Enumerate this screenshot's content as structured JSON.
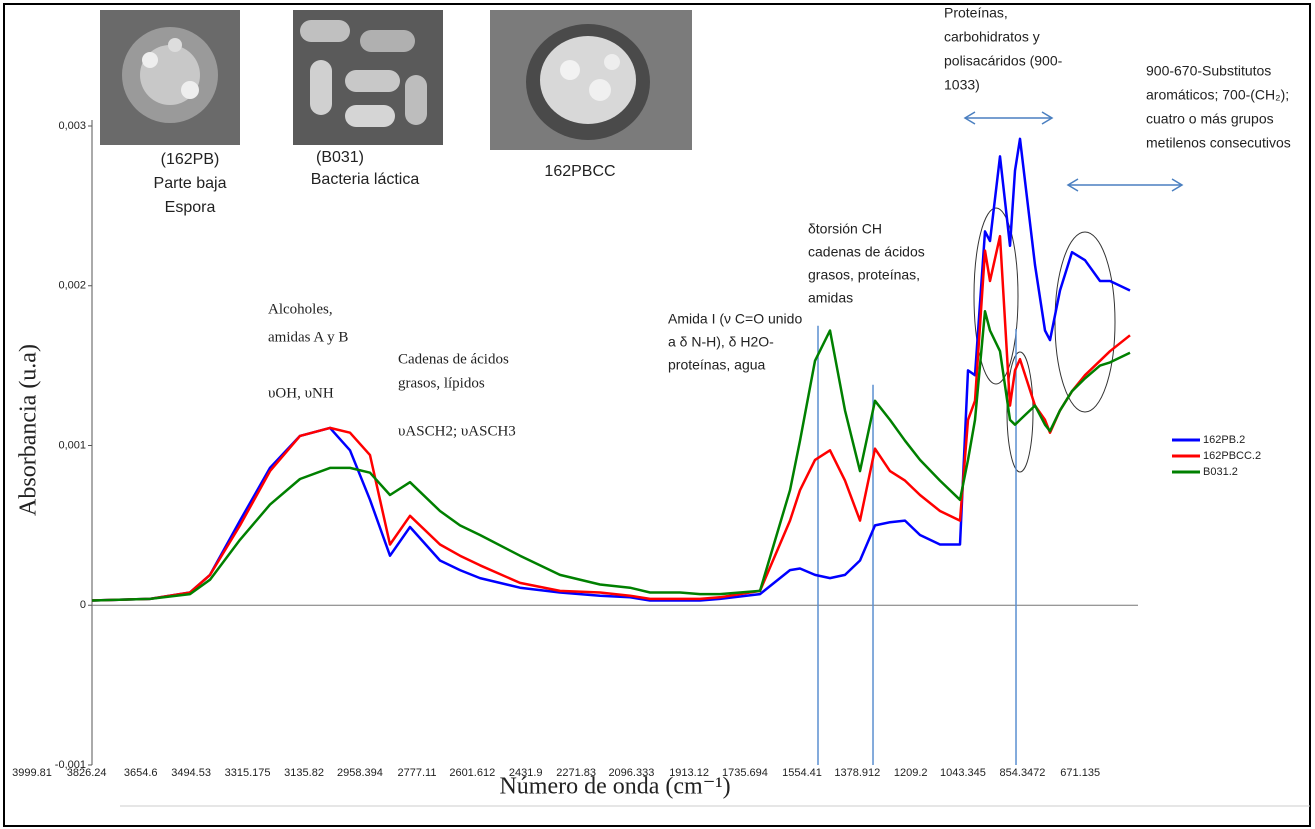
{
  "chart_data": {
    "type": "line",
    "x_label": "Número de onda (cm⁻¹)",
    "y_label": "Absorbancia (u.a)",
    "xlim": [
      3904.5,
      582.8
    ],
    "ylim": [
      -0.001,
      0.003
    ],
    "xticks": [
      3999.81,
      3826.24,
      3654.6,
      3494.53,
      3315.175,
      3135.82,
      2958.394,
      2777.11,
      2601.612,
      2431.9,
      2271.83,
      2096.333,
      1913.12,
      1735.694,
      1554.41,
      1378.912,
      1209.2,
      1043.345,
      854.3472,
      671.135
    ],
    "yticks": [
      {
        "value": 0.003,
        "label": "0,003"
      },
      {
        "value": 0.002,
        "label": "0,002"
      },
      {
        "value": 0.001,
        "label": "0,001"
      },
      0,
      {
        "value": -0.001,
        "label": "-0,001"
      }
    ],
    "legend": "right",
    "x": [
      3904.5,
      3720.3,
      3593.3,
      3529.8,
      3434.5,
      3339.3,
      3244.0,
      3148.7,
      3085.2,
      3021.7,
      2958.2,
      2894.7,
      2799.4,
      2735.9,
      2672.4,
      2545.3,
      2418.3,
      2291.3,
      2196.0,
      2132.5,
      2037.2,
      1973.7,
      1910.2,
      1783.2,
      1687.9,
      1656.1,
      1608.5,
      1560.9,
      1513.2,
      1465.6,
      1418.0,
      1370.3,
      1322.7,
      1275.0,
      1211.5,
      1148.0,
      1122.6,
      1100.4,
      1068.6,
      1052.8,
      1021.0,
      989.2,
      973.4,
      957.5,
      909.8,
      878.1,
      862.2,
      830.4,
      792.3,
      751.1,
      703.4,
      671.7,
      608.2
    ],
    "series": [
      {
        "name": "162PB.2",
        "color": "#0000ff",
        "values": [
          3e-05,
          4e-05,
          8e-05,
          0.00019,
          0.00053,
          0.00086,
          0.00106,
          0.00111,
          0.00097,
          0.00066,
          0.00031,
          0.00049,
          0.00028,
          0.00022,
          0.00017,
          0.00011,
          8e-05,
          6e-05,
          5e-05,
          3e-05,
          3e-05,
          3e-05,
          4e-05,
          7e-05,
          0.00022,
          0.00023,
          0.00019,
          0.00017,
          0.00019,
          0.00028,
          0.0005,
          0.00052,
          0.00053,
          0.00044,
          0.00038,
          0.00038,
          0.00147,
          0.00144,
          0.00234,
          0.00228,
          0.00281,
          0.00225,
          0.00272,
          0.00292,
          0.00213,
          0.00172,
          0.00166,
          0.00197,
          0.00221,
          0.00216,
          0.00203,
          0.00203,
          0.00197
        ]
      },
      {
        "name": "162PBCC.2",
        "color": "#ff0000",
        "values": [
          3e-05,
          4e-05,
          8e-05,
          0.00019,
          0.0005,
          0.00084,
          0.00106,
          0.00111,
          0.00108,
          0.00094,
          0.00038,
          0.00056,
          0.00038,
          0.00031,
          0.00025,
          0.00014,
          9e-05,
          8e-05,
          6e-05,
          4e-05,
          4e-05,
          4e-05,
          5e-05,
          9e-05,
          0.00053,
          0.00072,
          0.00091,
          0.00097,
          0.00078,
          0.00053,
          0.00098,
          0.00084,
          0.00078,
          0.00069,
          0.00059,
          0.00053,
          0.00116,
          0.00128,
          0.00222,
          0.00203,
          0.00231,
          0.00125,
          0.00147,
          0.00154,
          0.00125,
          0.00116,
          0.00108,
          0.00122,
          0.00134,
          0.00144,
          0.00153,
          0.00159,
          0.00169
        ]
      },
      {
        "name": "B031.2",
        "color": "#008000",
        "values": [
          3e-05,
          4e-05,
          7e-05,
          0.00016,
          0.00041,
          0.00063,
          0.00079,
          0.00086,
          0.00086,
          0.00083,
          0.00069,
          0.00077,
          0.00059,
          0.0005,
          0.00044,
          0.00031,
          0.00019,
          0.00013,
          0.00011,
          8e-05,
          8e-05,
          7e-05,
          7e-05,
          9e-05,
          0.00072,
          0.00103,
          0.00153,
          0.00172,
          0.00122,
          0.00084,
          0.00128,
          0.00116,
          0.00103,
          0.00091,
          0.00078,
          0.00066,
          0.00091,
          0.00116,
          0.00184,
          0.00172,
          0.00159,
          0.00116,
          0.00113,
          0.00116,
          0.00125,
          0.00113,
          0.00109,
          0.00122,
          0.00134,
          0.00142,
          0.0015,
          0.00152,
          0.00158
        ]
      }
    ],
    "reference_lines": [
      {
        "x": 1599.0,
        "top": 0.00175
      },
      {
        "x": 1424.3,
        "top": 0.00138
      },
      {
        "x": 970.2,
        "top": 0.00173
      }
    ],
    "images": [
      {
        "caption": [
          "(162PB)",
          "Parte baja",
          "Espora"
        ]
      },
      {
        "caption": [
          "(B031)",
          "Bacteria láctica"
        ]
      },
      {
        "caption": [
          "162PBCC"
        ]
      }
    ],
    "annotations": [
      {
        "lines": [
          "Alcoholes,",
          "amidas A y B",
          "",
          "υOH, υNH"
        ]
      },
      {
        "lines": [
          "Cadenas de ácidos",
          "grasos, lípidos",
          "",
          "υASCH2; υASCH3"
        ]
      },
      {
        "lines": [
          "Amida I (ν C=O unido",
          "a δ N-H), δ H2O-",
          "proteínas, agua"
        ]
      },
      {
        "lines": [
          "δtorsión CH",
          "cadenas de ácidos",
          "grasos, proteínas,",
          "amidas"
        ]
      },
      {
        "lines": [
          "Proteínas,",
          "carbohidratos y",
          "polisacáridos (900-",
          "1033)"
        ]
      },
      {
        "lines": [
          "900-670-Substitutos",
          "aromáticos; 700-(CH₂);",
          "cuatro o más grupos",
          "metilenos consecutivos"
        ]
      }
    ]
  }
}
